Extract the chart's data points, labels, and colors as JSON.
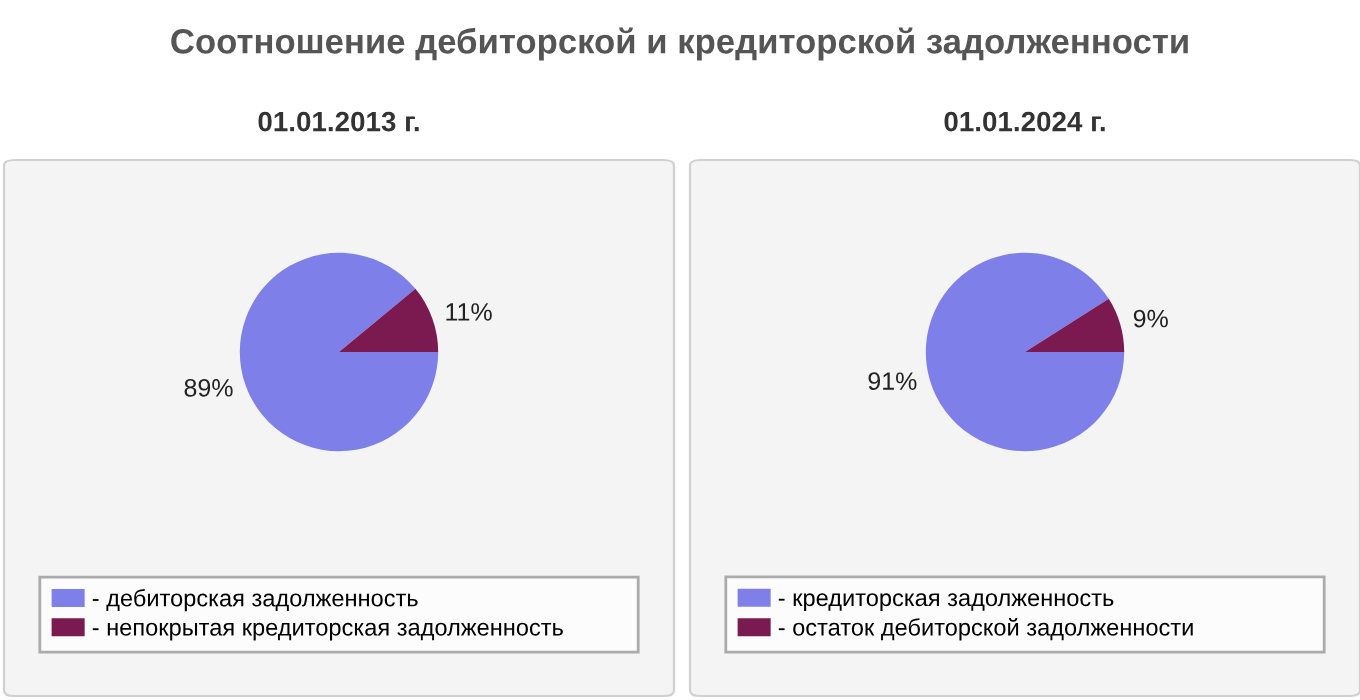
{
  "chart_data": [
    {
      "type": "pie",
      "title": "01.01.2013 г.",
      "annotations": [
        "Соотношение дебиторской и кредиторской задолженности"
      ],
      "categories": [
        "- дебиторская задолженность",
        "- непокрытая кредиторская задолженность"
      ],
      "values": [
        89,
        11
      ],
      "colors": [
        "#7f7fea",
        "#7a1a50"
      ],
      "value_labels": [
        "89%",
        "11%"
      ],
      "legend": "bottom"
    },
    {
      "type": "pie",
      "title": "01.01.2024 г.",
      "categories": [
        "- кредиторская задолженность",
        "- остаток дебиторской задолженности"
      ],
      "values": [
        91,
        9
      ],
      "colors": [
        "#7f7fea",
        "#7a1a50"
      ],
      "value_labels": [
        "91%",
        "9%"
      ],
      "legend": "bottom"
    }
  ]
}
